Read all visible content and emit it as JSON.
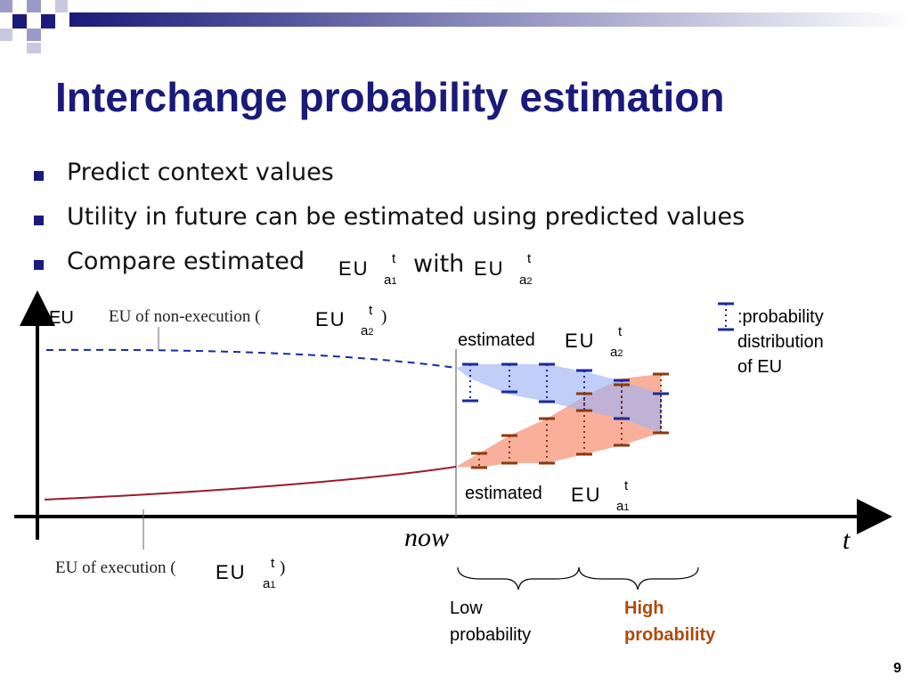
{
  "slide": {
    "title": "Interchange probability estimation",
    "page_number": "9",
    "colors": {
      "title": "#1a1a7a",
      "non_execution": "#1a2a9a",
      "execution": "#9a1a2a",
      "high_probability": "#b04a0a"
    }
  },
  "bullets": [
    {
      "text": "Predict context values"
    },
    {
      "text": "Utility in future can be estimated using predicted values"
    },
    {
      "text": "Compare estimated"
    }
  ],
  "bullet3": {
    "with": "with"
  },
  "formula": {
    "main": "EU",
    "sup": "t",
    "sub_a": "a",
    "sub1": "1",
    "sub2": "2"
  },
  "diagram": {
    "y_axis_label": "EU",
    "x_axis_label": "t",
    "now_label": "now",
    "non_exec_label": "EU of non-execution (",
    "exec_label": "EU of execution (",
    "paren_close": ")",
    "estimated_label": "estimated",
    "legend_line1": ":probability",
    "legend_line2": "distribution",
    "legend_line3": "of EU",
    "low_line1": "Low",
    "low_line2": "probability",
    "high_line1": "High",
    "high_line2": "probability"
  }
}
